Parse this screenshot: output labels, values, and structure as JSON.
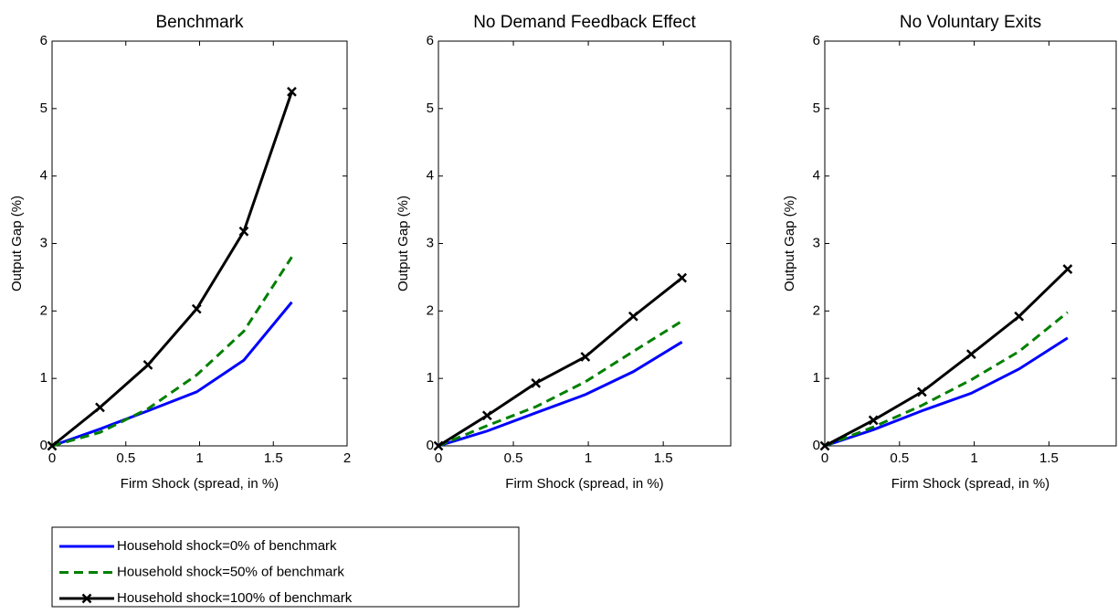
{
  "chart_data": [
    {
      "type": "line",
      "title": "Benchmark",
      "x_label": "Firm Shock (spread, in %)",
      "y_label": "Output Gap (%)",
      "x": [
        0,
        0.325,
        0.65,
        0.98,
        1.3,
        1.625
      ],
      "xlim": [
        0,
        2
      ],
      "xticks": [
        0,
        0.5,
        1,
        1.5,
        2
      ],
      "ylim": [
        0,
        6
      ],
      "yticks": [
        0,
        1,
        2,
        3,
        4,
        5,
        6
      ],
      "series": [
        {
          "name": "Household shock=0% of benchmark",
          "color": "#0000ff",
          "dashed": false,
          "marker": false,
          "values": [
            0,
            0.25,
            0.52,
            0.8,
            1.27,
            2.13
          ]
        },
        {
          "name": "Household shock=50% of benchmark",
          "color": "#007f00",
          "dashed": true,
          "marker": false,
          "values": [
            0,
            0.2,
            0.55,
            1.05,
            1.7,
            2.8
          ]
        },
        {
          "name": "Household shock=100% of benchmark",
          "color": "#000000",
          "dashed": false,
          "marker": true,
          "values": [
            0,
            0.57,
            1.2,
            2.03,
            3.18,
            5.25
          ]
        }
      ]
    },
    {
      "type": "line",
      "title": "No Demand Feedback Effect",
      "x_label": "Firm Shock (spread, in %)",
      "y_label": "Output Gap (%)",
      "x": [
        0,
        0.325,
        0.65,
        0.98,
        1.3,
        1.625
      ],
      "xlim": [
        0,
        1.95
      ],
      "xticks": [
        0,
        0.5,
        1,
        1.5
      ],
      "ylim": [
        0,
        6
      ],
      "yticks": [
        0,
        1,
        2,
        3,
        4,
        5,
        6
      ],
      "series": [
        {
          "color": "#0000ff",
          "dashed": false,
          "marker": false,
          "values": [
            0,
            0.22,
            0.49,
            0.76,
            1.1,
            1.54
          ]
        },
        {
          "color": "#007f00",
          "dashed": true,
          "marker": false,
          "values": [
            0,
            0.3,
            0.58,
            0.95,
            1.4,
            1.85
          ]
        },
        {
          "color": "#000000",
          "dashed": false,
          "marker": true,
          "values": [
            0,
            0.45,
            0.93,
            1.32,
            1.92,
            2.49
          ]
        }
      ]
    },
    {
      "type": "line",
      "title": "No Voluntary Exits",
      "x_label": "Firm Shock (spread, in %)",
      "y_label": "Output Gap (%)",
      "x": [
        0,
        0.325,
        0.65,
        0.98,
        1.3,
        1.625
      ],
      "xlim": [
        0,
        1.95
      ],
      "xticks": [
        0,
        0.5,
        1,
        1.5
      ],
      "ylim": [
        0,
        6
      ],
      "yticks": [
        0,
        1,
        2,
        3,
        4,
        5,
        6
      ],
      "series": [
        {
          "color": "#0000ff",
          "dashed": false,
          "marker": false,
          "values": [
            0,
            0.24,
            0.52,
            0.78,
            1.14,
            1.6
          ]
        },
        {
          "color": "#007f00",
          "dashed": true,
          "marker": false,
          "values": [
            0,
            0.28,
            0.6,
            0.98,
            1.4,
            1.98
          ]
        },
        {
          "color": "#000000",
          "dashed": false,
          "marker": true,
          "values": [
            0,
            0.38,
            0.8,
            1.36,
            1.92,
            2.62
          ]
        }
      ]
    }
  ]
}
